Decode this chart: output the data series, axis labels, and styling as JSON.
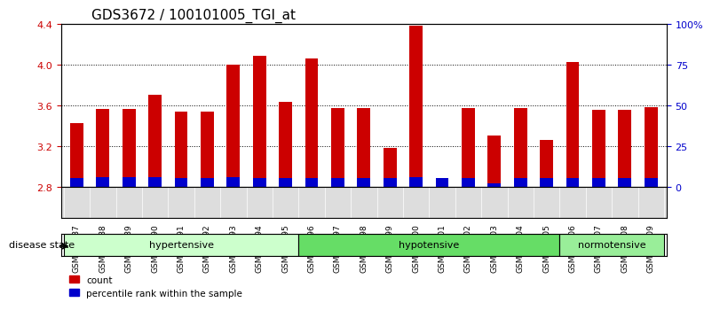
{
  "title": "GDS3672 / 100101005_TGI_at",
  "samples": [
    "GSM493487",
    "GSM493488",
    "GSM493489",
    "GSM493490",
    "GSM493491",
    "GSM493492",
    "GSM493493",
    "GSM493494",
    "GSM493495",
    "GSM493496",
    "GSM493497",
    "GSM493498",
    "GSM493499",
    "GSM493500",
    "GSM493501",
    "GSM493502",
    "GSM493503",
    "GSM493504",
    "GSM493505",
    "GSM493506",
    "GSM493507",
    "GSM493508",
    "GSM493509"
  ],
  "count_values": [
    3.42,
    3.56,
    3.56,
    3.7,
    3.54,
    3.54,
    4.0,
    4.08,
    3.63,
    4.06,
    3.57,
    3.57,
    3.18,
    4.38,
    2.86,
    3.57,
    3.3,
    3.57,
    3.26,
    4.02,
    3.55,
    3.55,
    3.58
  ],
  "percentile_values": [
    5,
    6,
    6,
    6,
    5,
    5,
    6,
    5,
    5,
    5,
    5,
    5,
    5,
    6,
    5,
    5,
    2,
    5,
    5,
    5,
    5,
    5,
    5
  ],
  "baseline": 2.8,
  "ylim_left": [
    2.8,
    4.4
  ],
  "ylim_right": [
    0,
    100
  ],
  "yticks_left": [
    2.8,
    3.2,
    3.6,
    4.0,
    4.4
  ],
  "yticks_right": [
    0,
    25,
    50,
    75,
    100
  ],
  "ytick_labels_right": [
    "0",
    "25",
    "50",
    "75",
    "100%"
  ],
  "groups": [
    {
      "name": "hypertensive",
      "start": 0,
      "end": 8,
      "color": "#ccffcc"
    },
    {
      "name": "hypotensive",
      "start": 9,
      "end": 18,
      "color": "#66dd66"
    },
    {
      "name": "normotensive",
      "start": 19,
      "end": 22,
      "color": "#99ee99"
    }
  ],
  "bar_color_red": "#cc0000",
  "bar_color_blue": "#0000cc",
  "bar_width": 0.5,
  "bg_color": "#ffffff",
  "tick_color_left": "#cc0000",
  "tick_color_right": "#0000cc",
  "label_count": "count",
  "label_percentile": "percentile rank within the sample",
  "disease_state_label": "disease state"
}
